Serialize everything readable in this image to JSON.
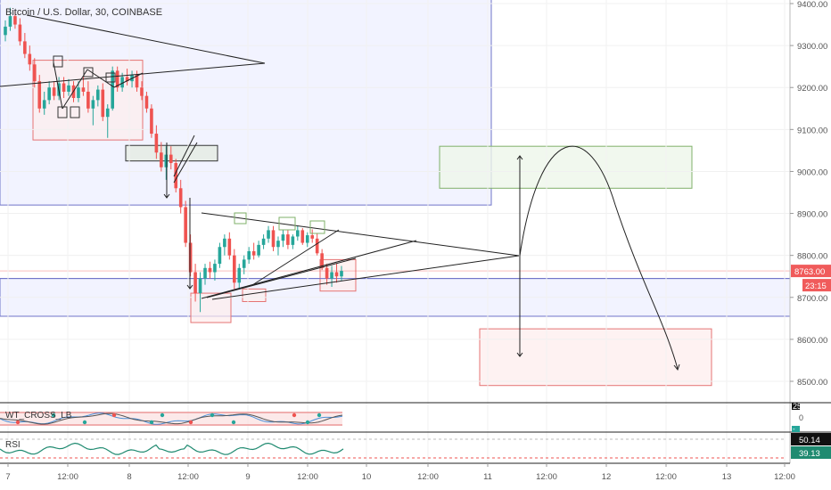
{
  "header": {
    "symbol_title": "Bitcoin / U.S. Dollar, 30, COINBASE"
  },
  "colors": {
    "up": "#26a69a",
    "down": "#ef5350",
    "blue_zone": "#e8eaff",
    "blue_edge": "#6f74c9",
    "red_zone": "#fdecec",
    "red_edge": "#e57373",
    "green_zone": "#eef6ea",
    "green_edge": "#7fb069",
    "dark_zone": "#e6ece6",
    "line": "#222222",
    "axis_text": "#555555"
  },
  "chart_data": {
    "type": "candlestick",
    "title": "Bitcoin / U.S. Dollar, 30, COINBASE",
    "y_axis_ticks": [
      9400,
      9300,
      9200,
      9100,
      9000,
      8900,
      8800,
      8700,
      8600,
      8500
    ],
    "ylim": [
      8445,
      9420
    ],
    "x_tick_labels": [
      "7",
      "12:00",
      "8",
      "12:00",
      "9",
      "12:00",
      "10",
      "12:00",
      "11",
      "12:00",
      "12",
      "12:00",
      "13",
      "12:00"
    ],
    "price_badges": {
      "last_price": "8763.00",
      "countdown": "23:15"
    },
    "reference_level": 8745,
    "zones": [
      {
        "name": "upper-range",
        "kind": "blue",
        "price_top": 9420,
        "price_bottom": 8920
      },
      {
        "name": "support-band",
        "kind": "blue",
        "price_top": 8745,
        "price_bottom": 8655
      },
      {
        "name": "consolidation-box",
        "kind": "red",
        "price_top": 9265,
        "price_bottom": 9075
      },
      {
        "name": "breakdown-box",
        "kind": "dark",
        "price_top": 9062,
        "price_bottom": 9025
      },
      {
        "name": "low-box",
        "kind": "red",
        "price_top": 8710,
        "price_bottom": 8640
      },
      {
        "name": "higher-low-box",
        "kind": "red",
        "price_top": 8720,
        "price_bottom": 8690
      },
      {
        "name": "recent-box",
        "kind": "red",
        "price_top": 8790,
        "price_bottom": 8715
      },
      {
        "name": "target-up",
        "kind": "green",
        "price_top": 9060,
        "price_bottom": 8960
      },
      {
        "name": "target-down",
        "kind": "red",
        "price_top": 8625,
        "price_bottom": 8490
      }
    ],
    "candles": [
      {
        "o": 9325,
        "h": 9360,
        "l": 9310,
        "c": 9345
      },
      {
        "o": 9345,
        "h": 9390,
        "l": 9335,
        "c": 9370
      },
      {
        "o": 9370,
        "h": 9385,
        "l": 9340,
        "c": 9350
      },
      {
        "o": 9350,
        "h": 9365,
        "l": 9300,
        "c": 9310
      },
      {
        "o": 9310,
        "h": 9330,
        "l": 9270,
        "c": 9280
      },
      {
        "o": 9280,
        "h": 9300,
        "l": 9240,
        "c": 9255
      },
      {
        "o": 9255,
        "h": 9270,
        "l": 9200,
        "c": 9215
      },
      {
        "o": 9215,
        "h": 9230,
        "l": 9140,
        "c": 9150
      },
      {
        "o": 9150,
        "h": 9190,
        "l": 9135,
        "c": 9170
      },
      {
        "o": 9170,
        "h": 9215,
        "l": 9160,
        "c": 9200
      },
      {
        "o": 9200,
        "h": 9215,
        "l": 9170,
        "c": 9180
      },
      {
        "o": 9180,
        "h": 9225,
        "l": 9170,
        "c": 9210
      },
      {
        "o": 9210,
        "h": 9225,
        "l": 9175,
        "c": 9190
      },
      {
        "o": 9190,
        "h": 9220,
        "l": 9180,
        "c": 9205
      },
      {
        "o": 9205,
        "h": 9215,
        "l": 9165,
        "c": 9175
      },
      {
        "o": 9175,
        "h": 9215,
        "l": 9165,
        "c": 9200
      },
      {
        "o": 9200,
        "h": 9225,
        "l": 9180,
        "c": 9190
      },
      {
        "o": 9190,
        "h": 9215,
        "l": 9140,
        "c": 9150
      },
      {
        "o": 9150,
        "h": 9180,
        "l": 9110,
        "c": 9170
      },
      {
        "o": 9170,
        "h": 9205,
        "l": 9155,
        "c": 9195
      },
      {
        "o": 9195,
        "h": 9210,
        "l": 9120,
        "c": 9130
      },
      {
        "o": 9130,
        "h": 9160,
        "l": 9080,
        "c": 9150
      },
      {
        "o": 9150,
        "h": 9250,
        "l": 9145,
        "c": 9240
      },
      {
        "o": 9240,
        "h": 9250,
        "l": 9190,
        "c": 9200
      },
      {
        "o": 9200,
        "h": 9235,
        "l": 9190,
        "c": 9225
      },
      {
        "o": 9225,
        "h": 9245,
        "l": 9205,
        "c": 9215
      },
      {
        "o": 9215,
        "h": 9240,
        "l": 9200,
        "c": 9230
      },
      {
        "o": 9230,
        "h": 9240,
        "l": 9190,
        "c": 9200
      },
      {
        "o": 9200,
        "h": 9215,
        "l": 9170,
        "c": 9180
      },
      {
        "o": 9180,
        "h": 9190,
        "l": 9140,
        "c": 9150
      },
      {
        "o": 9150,
        "h": 9160,
        "l": 9080,
        "c": 9090
      },
      {
        "o": 9090,
        "h": 9110,
        "l": 9030,
        "c": 9045
      },
      {
        "o": 9045,
        "h": 9070,
        "l": 9000,
        "c": 9010
      },
      {
        "o": 9010,
        "h": 9060,
        "l": 8980,
        "c": 9040
      },
      {
        "o": 9040,
        "h": 9060,
        "l": 9005,
        "c": 9020
      },
      {
        "o": 9020,
        "h": 9030,
        "l": 8950,
        "c": 8960
      },
      {
        "o": 8960,
        "h": 8980,
        "l": 8900,
        "c": 8915
      },
      {
        "o": 8915,
        "h": 8930,
        "l": 8820,
        "c": 8830
      },
      {
        "o": 8830,
        "h": 8850,
        "l": 8750,
        "c": 8760
      },
      {
        "o": 8760,
        "h": 8780,
        "l": 8690,
        "c": 8710
      },
      {
        "o": 8710,
        "h": 8760,
        "l": 8665,
        "c": 8745
      },
      {
        "o": 8745,
        "h": 8780,
        "l": 8730,
        "c": 8770
      },
      {
        "o": 8770,
        "h": 8785,
        "l": 8745,
        "c": 8760
      },
      {
        "o": 8760,
        "h": 8790,
        "l": 8740,
        "c": 8780
      },
      {
        "o": 8780,
        "h": 8830,
        "l": 8770,
        "c": 8820
      },
      {
        "o": 8820,
        "h": 8850,
        "l": 8800,
        "c": 8840
      },
      {
        "o": 8840,
        "h": 8855,
        "l": 8790,
        "c": 8800
      },
      {
        "o": 8800,
        "h": 8815,
        "l": 8720,
        "c": 8735
      },
      {
        "o": 8735,
        "h": 8780,
        "l": 8720,
        "c": 8770
      },
      {
        "o": 8770,
        "h": 8800,
        "l": 8755,
        "c": 8790
      },
      {
        "o": 8790,
        "h": 8820,
        "l": 8780,
        "c": 8810
      },
      {
        "o": 8810,
        "h": 8830,
        "l": 8790,
        "c": 8800
      },
      {
        "o": 8800,
        "h": 8835,
        "l": 8795,
        "c": 8825
      },
      {
        "o": 8825,
        "h": 8850,
        "l": 8815,
        "c": 8840
      },
      {
        "o": 8840,
        "h": 8870,
        "l": 8830,
        "c": 8860
      },
      {
        "o": 8860,
        "h": 8870,
        "l": 8810,
        "c": 8820
      },
      {
        "o": 8820,
        "h": 8845,
        "l": 8800,
        "c": 8835
      },
      {
        "o": 8835,
        "h": 8860,
        "l": 8820,
        "c": 8850
      },
      {
        "o": 8850,
        "h": 8860,
        "l": 8815,
        "c": 8825
      },
      {
        "o": 8825,
        "h": 8850,
        "l": 8815,
        "c": 8845
      },
      {
        "o": 8845,
        "h": 8870,
        "l": 8835,
        "c": 8860
      },
      {
        "o": 8860,
        "h": 8865,
        "l": 8825,
        "c": 8830
      },
      {
        "o": 8830,
        "h": 8855,
        "l": 8820,
        "c": 8848
      },
      {
        "o": 8848,
        "h": 8862,
        "l": 8830,
        "c": 8840
      },
      {
        "o": 8840,
        "h": 8852,
        "l": 8800,
        "c": 8805
      },
      {
        "o": 8805,
        "h": 8815,
        "l": 8765,
        "c": 8770
      },
      {
        "o": 8770,
        "h": 8780,
        "l": 8730,
        "c": 8745
      },
      {
        "o": 8745,
        "h": 8775,
        "l": 8725,
        "c": 8760
      },
      {
        "o": 8760,
        "h": 8780,
        "l": 8735,
        "c": 8750
      },
      {
        "o": 8750,
        "h": 8775,
        "l": 8740,
        "c": 8763
      }
    ],
    "indicators": [
      {
        "name": "WT_CROSS_LB",
        "axis_labels": [
          "25",
          "0",
          "-"
        ]
      },
      {
        "name": "RSI",
        "axis_labels": [
          "50.14",
          "39.13"
        ]
      }
    ]
  }
}
